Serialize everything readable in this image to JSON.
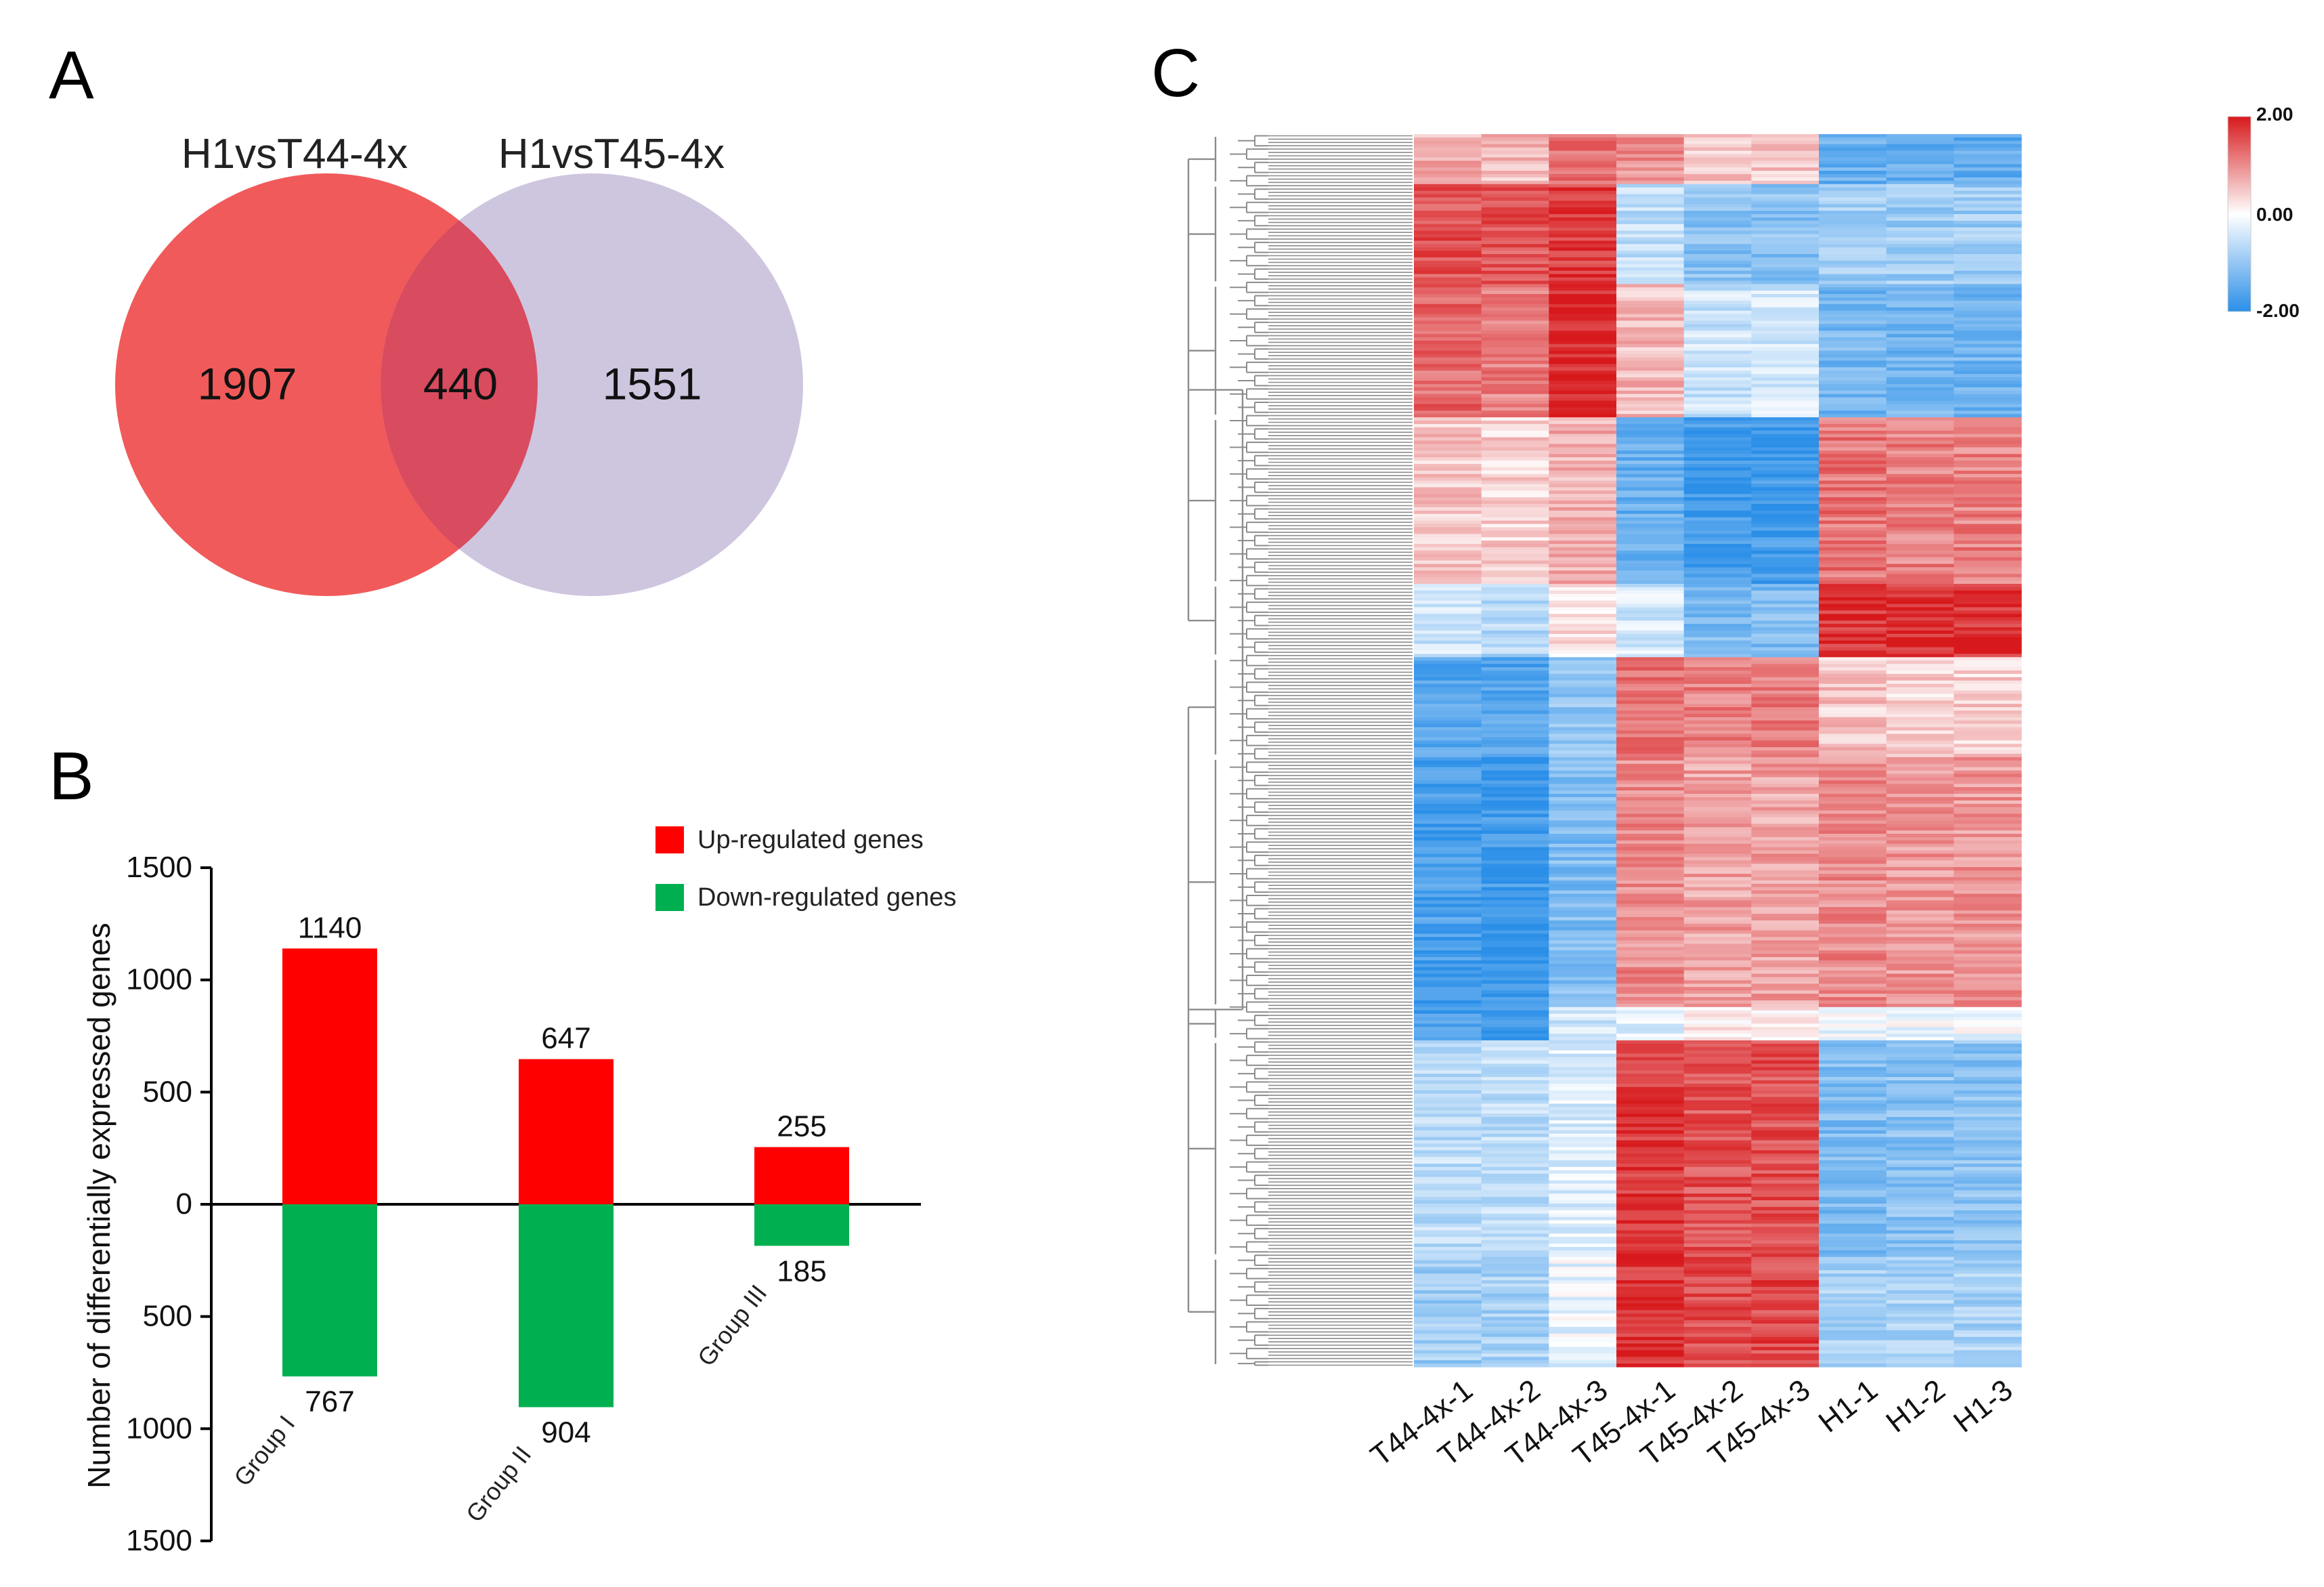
{
  "colors": {
    "venn_a": "#f15a5a",
    "venn_b": "#c9bfdc",
    "venn_overlap": "#d94b5e",
    "up": "#ff0000",
    "down": "#00b050",
    "heat_high": "#d7191c",
    "heat_mid": "#ffffff",
    "heat_low": "#2b8fe8",
    "dendrogram": "#8c8c8c"
  },
  "panels": {
    "a": {
      "label": "A",
      "set_left": "H1vsT44-4x",
      "set_right": "H1vsT45-4x",
      "only_left": "1907",
      "overlap": "440",
      "only_right": "1551"
    },
    "b": {
      "label": "B"
    },
    "c": {
      "label": "C"
    }
  },
  "chart_data": [
    {
      "type": "venn",
      "sets": [
        "H1vsT44-4x",
        "H1vsT45-4x"
      ],
      "only_left": 1907,
      "intersection": 440,
      "only_right": 1551
    },
    {
      "type": "bar",
      "title": "",
      "ylabel": "Number of differentially expressed genes",
      "xlabel": "",
      "categories": [
        "Group I",
        "Group II",
        "Group III"
      ],
      "ylim": [
        -1500,
        1500
      ],
      "yticks": [
        1500,
        1000,
        500,
        0,
        -500,
        -1000,
        -1500
      ],
      "ytick_labels": [
        "1500",
        "1000",
        "500",
        "0",
        "500",
        "1000",
        "1500"
      ],
      "legend_position": "top-right",
      "series": [
        {
          "name": "Up-regulated genes",
          "values": [
            1140,
            647,
            255
          ]
        },
        {
          "name": "Down-regulated genes",
          "values": [
            -767,
            -904,
            -185
          ]
        }
      ],
      "data_labels": {
        "up": [
          "1140",
          "647",
          "255"
        ],
        "down": [
          "767",
          "904",
          "185"
        ]
      }
    },
    {
      "type": "heatmap",
      "columns": [
        "T44-4x-1",
        "T44-4x-2",
        "T44-4x-3",
        "T45-4x-1",
        "T45-4x-2",
        "T45-4x-3",
        "H1-1",
        "H1-2",
        "H1-3"
      ],
      "scale": {
        "min": -2.0,
        "mid": 0.0,
        "max": 2.0,
        "labels": [
          "2.00",
          "0.00",
          "-2.00"
        ]
      },
      "row_clusters": [
        {
          "rows": 15,
          "values": [
            0.7,
            0.6,
            1.2,
            1.0,
            0.5,
            0.5,
            -1.4,
            -1.5,
            -1.5
          ]
        },
        {
          "rows": 30,
          "values": [
            1.5,
            1.5,
            1.7,
            -0.6,
            -1.1,
            -1.1,
            -0.9,
            -0.9,
            -0.9
          ]
        },
        {
          "rows": 40,
          "values": [
            1.3,
            1.1,
            1.9,
            0.6,
            -0.5,
            -0.4,
            -1.3,
            -1.3,
            -1.3
          ]
        },
        {
          "rows": 50,
          "values": [
            0.5,
            0.4,
            0.7,
            -1.4,
            -1.8,
            -1.8,
            1.2,
            1.1,
            1.1
          ]
        },
        {
          "rows": 22,
          "values": [
            -0.5,
            -0.7,
            0.3,
            -0.4,
            -1.2,
            -1.2,
            1.8,
            1.8,
            1.8
          ]
        },
        {
          "rows": 30,
          "values": [
            -1.6,
            -1.6,
            -1.0,
            1.2,
            1.1,
            1.1,
            0.5,
            0.4,
            0.4
          ]
        },
        {
          "rows": 75,
          "values": [
            -1.7,
            -1.8,
            -1.2,
            1.0,
            0.8,
            0.8,
            1.0,
            0.9,
            0.9
          ]
        },
        {
          "rows": 10,
          "values": [
            -1.7,
            -1.9,
            -0.4,
            -0.3,
            0.1,
            0.1,
            -0.2,
            -0.1,
            -0.1
          ]
        },
        {
          "rows": 65,
          "values": [
            -0.6,
            -0.6,
            -0.3,
            1.7,
            1.5,
            1.5,
            -1.2,
            -1.1,
            -1.1
          ]
        },
        {
          "rows": 33,
          "values": [
            -0.9,
            -0.8,
            -0.2,
            1.8,
            1.6,
            1.6,
            -0.8,
            -0.8,
            -0.8
          ]
        }
      ]
    }
  ]
}
